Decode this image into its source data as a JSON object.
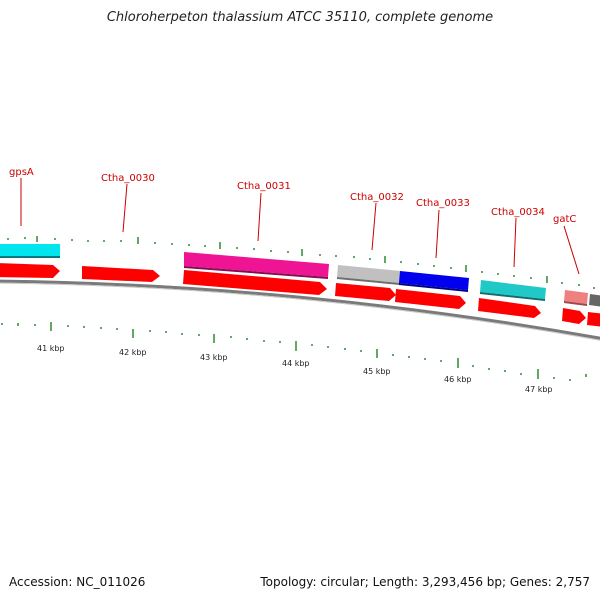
{
  "title": "Chloroherpeton thalassium ATCC 35110, complete genome",
  "footer": {
    "accession": "Accession: NC_011026",
    "stats": "Topology: circular; Length: 3,293,456 bp; Genes: 2,757"
  },
  "scale": {
    "unit": "kbp",
    "ticks": [
      "41 kbp",
      "42 kbp",
      "43 kbp",
      "44 kbp",
      "45 kbp",
      "46 kbp",
      "47 kbp"
    ]
  },
  "gene_labels": [
    "gpsA",
    "Ctha_0030",
    "Ctha_0031",
    "Ctha_0032",
    "Ctha_0033",
    "Ctha_0034",
    "gatC"
  ],
  "colors": {
    "cds": "#ff0000",
    "backbone": "#888888",
    "tick": "#2e8b2e",
    "label": "#cc0000",
    "gene_cyan": "#00e5ee",
    "gene_magenta": "#ee1493",
    "gene_gray": "#c0c0c0",
    "gene_blue": "#0000ee",
    "gene_teal": "#20c8c8",
    "gene_pink": "#f08080",
    "gene_darkgray": "#666666"
  }
}
